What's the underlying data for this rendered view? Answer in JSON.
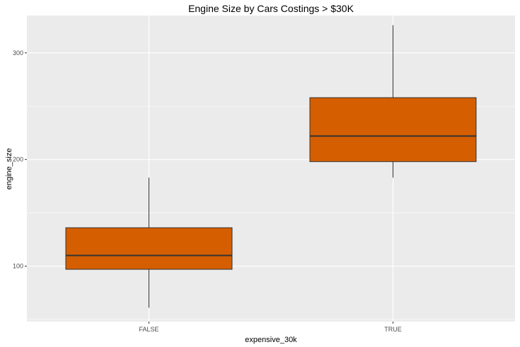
{
  "chart_data": {
    "type": "box",
    "title": "Engine Size by Cars Costings > $30K",
    "xlabel": "expensive_30k",
    "ylabel": "engine_size",
    "ylim": [
      48,
      335
    ],
    "yticks": [
      100,
      200,
      300
    ],
    "y_minor_ticks": [
      50,
      150,
      250
    ],
    "grid": true,
    "legend": "none",
    "categories": [
      "FALSE",
      "TRUE"
    ],
    "boxes": [
      {
        "category": "FALSE",
        "min": 61,
        "q1": 97,
        "median": 110,
        "q3": 136,
        "max": 183
      },
      {
        "category": "TRUE",
        "min": 183,
        "q1": 198,
        "median": 222,
        "q3": 258,
        "max": 326
      }
    ],
    "colors": {
      "panel": "#ebebeb",
      "grid": "#ffffff",
      "box_fill": "#d55e00",
      "box_stroke": "#333333",
      "tick_text": "#4d4d4d"
    }
  }
}
